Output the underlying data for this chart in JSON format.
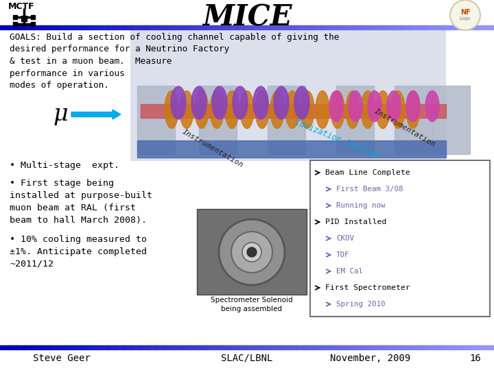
{
  "title": "MICE",
  "mctf_label": "MCTF",
  "background_color": "#ffffff",
  "header_bar_colors": [
    "#0000cc",
    "#aaaaff"
  ],
  "footer_bar_colors": [
    "#0000cc",
    "#aaaaff"
  ],
  "goals_text": "GOALS: Build a section of cooling channel capable of giving the\ndesired performance for a Neutrino Factory\n& test in a muon beam.  Measure\nperformance in various\nmodes of operation.",
  "bullet1": "• Multi-stage  expt.",
  "bullet2": "• First stage being\ninstalled at purpose-built\nmuon beam at RAL (first\nbeam to hall March 2008).",
  "bullet3": "• 10% cooling measured to\n±1%. Anticipate completed\n~2011/12",
  "mu_symbol": "μ",
  "instrumentation_label_bottom": "Instrumentation",
  "instrumentation_label_top": "Instrumentation",
  "ionization_label": "Ionization Cooling",
  "spectrometer_caption": "Spectrometer Solenoid\nbeing assembled",
  "check_items": [
    {
      "label": "Beam Line Complete",
      "sub": false
    },
    {
      "label": "First Beam 3/08",
      "sub": true
    },
    {
      "label": "Running now",
      "sub": true
    },
    {
      "label": "PID Installed",
      "sub": false
    },
    {
      "label": "CKOV",
      "sub": true
    },
    {
      "label": "TOF",
      "sub": true
    },
    {
      "label": "EM Cal",
      "sub": true
    },
    {
      "label": "First Spectrometer",
      "sub": false
    },
    {
      "label": "Spring 2010",
      "sub": true
    }
  ],
  "footer_left": "Steve Geer",
  "footer_center": "SLAC/LBNL",
  "footer_right": "November, 2009",
  "footer_page": "16",
  "title_fontsize": 30,
  "body_fontsize": 10,
  "footer_fontsize": 10,
  "arrow_color": "#00aaee",
  "checklist_main_color": "#000000",
  "checklist_sub_color": "#6666aa"
}
